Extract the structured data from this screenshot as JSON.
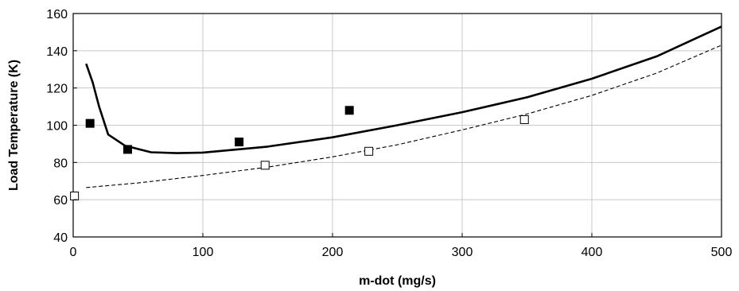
{
  "chart_data": {
    "type": "line",
    "title": "",
    "xlabel": "m-dot  (mg/s)",
    "ylabel": "Load Temperature (K)",
    "xlim": [
      0,
      500
    ],
    "ylim": [
      40,
      160
    ],
    "xticks": [
      0,
      100,
      200,
      300,
      400,
      500
    ],
    "yticks": [
      40,
      60,
      80,
      100,
      120,
      140,
      160
    ],
    "grid": true,
    "legend": "none",
    "series": [
      {
        "style": "solid-thick",
        "color": "#000000",
        "x": [
          10,
          15,
          20,
          27,
          40,
          60,
          80,
          100,
          150,
          200,
          250,
          300,
          350,
          400,
          450,
          500
        ],
        "y": [
          133,
          123,
          110,
          95,
          89,
          85.5,
          85,
          85.3,
          88.5,
          93.5,
          100,
          107,
          115,
          125,
          137,
          153
        ]
      },
      {
        "style": "dashed",
        "color": "#000000",
        "x": [
          10,
          50,
          100,
          150,
          200,
          250,
          300,
          350,
          400,
          450,
          500
        ],
        "y": [
          66.5,
          69,
          73,
          77.5,
          83,
          89.5,
          97.5,
          106,
          116,
          128,
          143
        ]
      },
      {
        "style": "filled-square-markers",
        "color": "#000000",
        "x": [
          13,
          42,
          128,
          213
        ],
        "y": [
          101,
          87,
          91,
          108
        ]
      },
      {
        "style": "open-square-markers",
        "color": "#000000",
        "x": [
          1,
          148,
          228,
          348
        ],
        "y": [
          62,
          78.5,
          86,
          103
        ]
      }
    ]
  }
}
